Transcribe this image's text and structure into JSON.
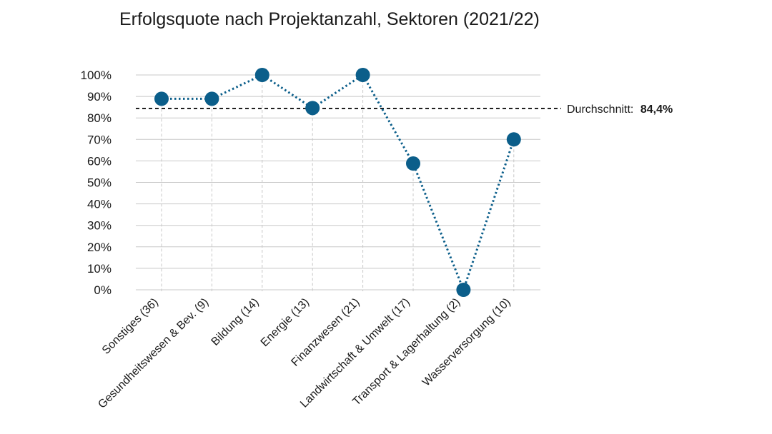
{
  "chart_data": {
    "type": "line",
    "title": "Erfolgsquote nach Projektanzahl, Sektoren (2021/22)",
    "xlabel": "",
    "ylabel": "",
    "ylim": [
      0,
      100
    ],
    "yticks": [
      "0%",
      "10%",
      "20%",
      "30%",
      "40%",
      "50%",
      "60%",
      "70%",
      "80%",
      "90%",
      "100%"
    ],
    "categories": [
      "Sonstiges (36)",
      "Gesundheitswesen & Bev. (9)",
      "Bildung (14)",
      "Energie (13)",
      "Finanzwesen (21)",
      "Landwirtschaft & Umwelt (17)",
      "Transport & Lagerhaltung (2)",
      "Wasserversorgung (10)"
    ],
    "values": [
      88.9,
      88.9,
      100,
      84.6,
      100,
      58.8,
      0,
      70
    ],
    "reference_line": {
      "label": "Durchschnitt:",
      "value_text": "84,4%",
      "value": 84.4
    },
    "grid": true,
    "colors": {
      "series": "#0b5e8a",
      "average": "#111111",
      "grid": "#c8c8c8",
      "vertical_guides": "#c8c8c8"
    }
  }
}
